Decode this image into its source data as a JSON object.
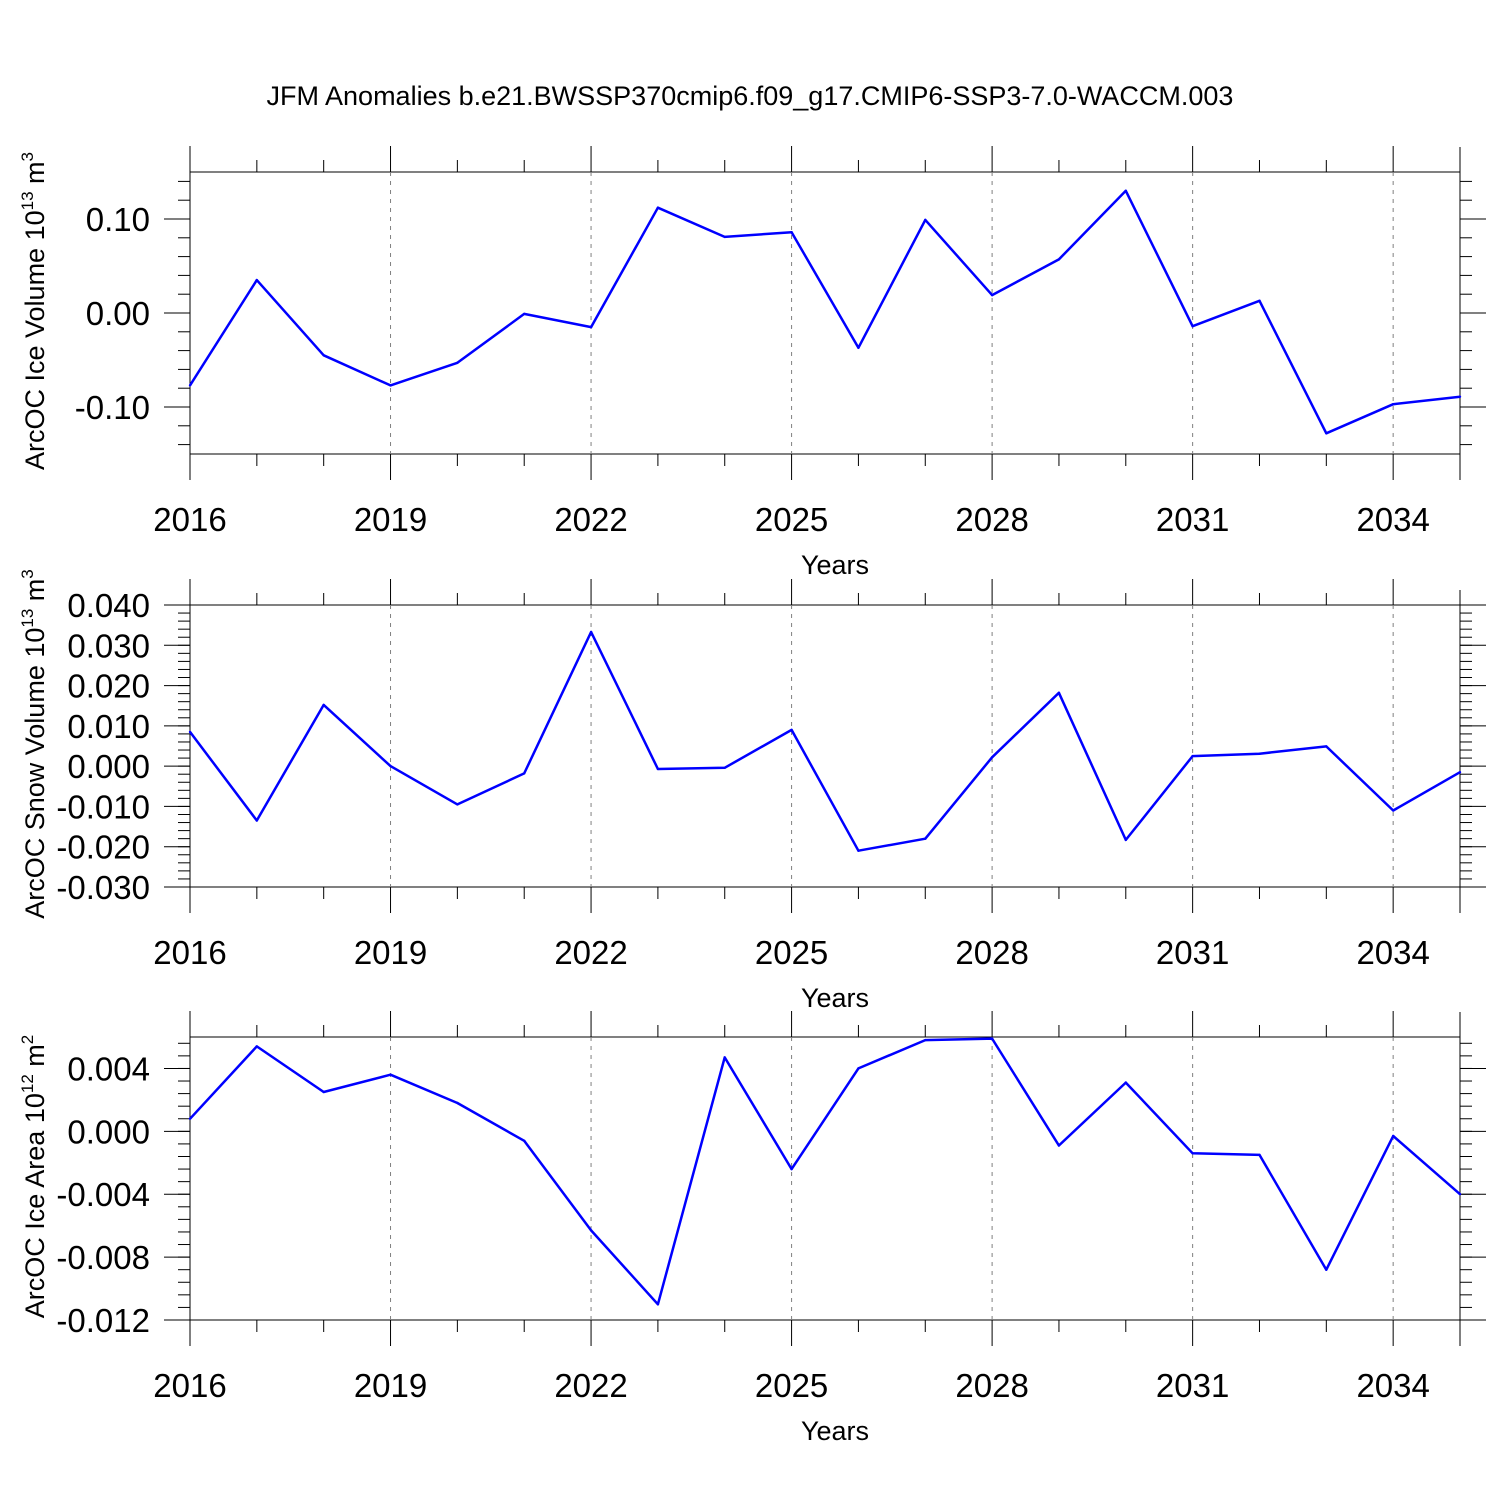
{
  "title": "JFM Anomalies b.e21.BWSSP370cmip6.f09_g17.CMIP6-SSP3-7.0-WACCM.003",
  "colors": {
    "line": "#0000ff",
    "axis": "#000000",
    "grid": "#808080"
  },
  "chart_data": [
    {
      "type": "line",
      "xlabel": "Years",
      "ylabel": {
        "main": "ArcOC Ice Volume 10",
        "exp": "13",
        "unit": " m",
        "unit_exp": "3"
      },
      "xlim": [
        2016,
        2035
      ],
      "ylim": [
        -0.15,
        0.15
      ],
      "x_ticks": [
        "2016",
        "2019",
        "2022",
        "2025",
        "2028",
        "2031",
        "2034"
      ],
      "y_ticks": [
        "-0.10",
        "0.00",
        "0.10"
      ],
      "y_tick_values": [
        -0.1,
        0.0,
        0.1
      ],
      "y_minor_step": 0.02,
      "y_minor_start": -0.14,
      "grid_x_vertical_dashed": true,
      "x": [
        2016,
        2017,
        2018,
        2019,
        2020,
        2021,
        2022,
        2023,
        2024,
        2025,
        2026,
        2027,
        2028,
        2029,
        2030,
        2031,
        2032,
        2033,
        2034,
        2035
      ],
      "series": [
        {
          "values": [
            -0.077,
            0.035,
            -0.045,
            -0.077,
            -0.053,
            -0.001,
            -0.015,
            0.112,
            0.081,
            0.086,
            -0.037,
            0.099,
            0.019,
            0.057,
            0.13,
            -0.014,
            0.013,
            -0.128,
            -0.097,
            -0.089
          ]
        }
      ]
    },
    {
      "type": "line",
      "xlabel": "Years",
      "ylabel": {
        "main": "ArcOC Snow Volume 10",
        "exp": "13",
        "unit": " m",
        "unit_exp": "3"
      },
      "xlim": [
        2016,
        2035
      ],
      "ylim": [
        -0.03,
        0.04
      ],
      "x_ticks": [
        "2016",
        "2019",
        "2022",
        "2025",
        "2028",
        "2031",
        "2034"
      ],
      "y_ticks": [
        "-0.030",
        "-0.020",
        "-0.010",
        "0.000",
        "0.010",
        "0.020",
        "0.030",
        "0.040"
      ],
      "y_tick_values": [
        -0.03,
        -0.02,
        -0.01,
        0.0,
        0.01,
        0.02,
        0.03,
        0.04
      ],
      "y_minor_step": 0.002,
      "y_minor_start": -0.03,
      "grid_x_vertical_dashed": true,
      "x": [
        2016,
        2017,
        2018,
        2019,
        2020,
        2021,
        2022,
        2023,
        2024,
        2025,
        2026,
        2027,
        2028,
        2029,
        2030,
        2031,
        2032,
        2033,
        2034,
        2035
      ],
      "series": [
        {
          "values": [
            0.0085,
            -0.0135,
            0.0152,
            0.0,
            -0.0095,
            -0.0018,
            0.0333,
            -0.0007,
            -0.0004,
            0.009,
            -0.021,
            -0.018,
            0.0022,
            0.0182,
            -0.0183,
            0.0025,
            0.0031,
            0.0049,
            -0.011,
            -0.0015
          ]
        }
      ]
    },
    {
      "type": "line",
      "xlabel": "Years",
      "ylabel": {
        "main": "ArcOC Ice Area 10",
        "exp": "12",
        "unit": " m",
        "unit_exp": "2"
      },
      "xlim": [
        2016,
        2035
      ],
      "ylim": [
        -0.012,
        0.006
      ],
      "x_ticks": [
        "2016",
        "2019",
        "2022",
        "2025",
        "2028",
        "2031",
        "2034"
      ],
      "y_ticks": [
        "-0.012",
        "-0.008",
        "-0.004",
        "0.000",
        "0.004"
      ],
      "y_tick_values": [
        -0.012,
        -0.008,
        -0.004,
        0.0,
        0.004
      ],
      "y_minor_step": 0.0008,
      "y_minor_start": -0.012,
      "grid_x_vertical_dashed": true,
      "x": [
        2016,
        2017,
        2018,
        2019,
        2020,
        2021,
        2022,
        2023,
        2024,
        2025,
        2026,
        2027,
        2028,
        2029,
        2030,
        2031,
        2032,
        2033,
        2034,
        2035
      ],
      "series": [
        {
          "values": [
            0.0008,
            0.0054,
            0.0025,
            0.0036,
            0.0018,
            -0.0006,
            -0.0063,
            -0.011,
            0.0047,
            -0.0024,
            0.004,
            0.0058,
            0.0059,
            -0.0009,
            0.0031,
            -0.0014,
            -0.0015,
            -0.0088,
            -0.0003,
            -0.004
          ]
        }
      ]
    }
  ]
}
